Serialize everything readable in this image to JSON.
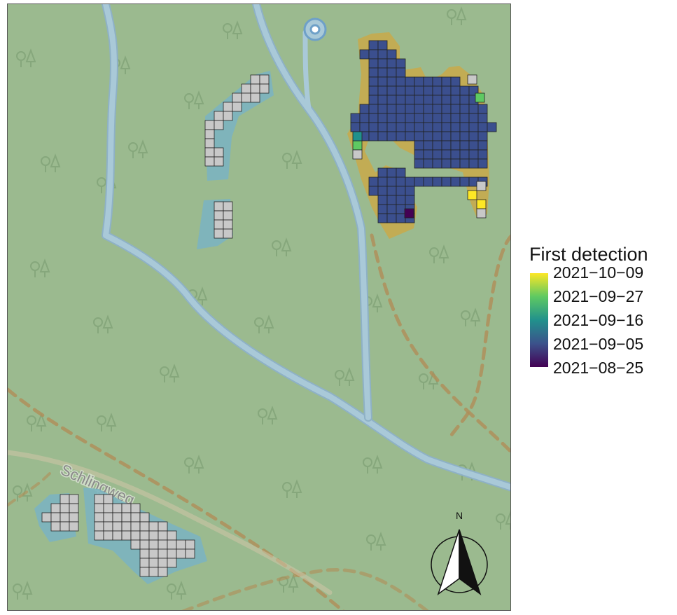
{
  "map": {
    "street_label": "Schlingweg",
    "north_arrow_label": "N",
    "legend": {
      "title": "First detection",
      "labels": [
        "2021−10−09",
        "2021−09−27",
        "2021−09−16",
        "2021−09−05",
        "2021−08−25"
      ],
      "colors": [
        "#fde725",
        "#5ec962",
        "#21918c",
        "#3b528b",
        "#440154"
      ]
    },
    "colors": {
      "background": "#9bba8f",
      "river": "#a9c9d8",
      "river_edge": "#8eb1c6",
      "path": "#b08d57",
      "polygon_blue": "#7cb4c0",
      "polygon_gold": "#c9a94a",
      "cell_gray": "#c8c8c8",
      "cell_navy": "#3b4f8e",
      "tree_icon": "#86a77c"
    }
  }
}
